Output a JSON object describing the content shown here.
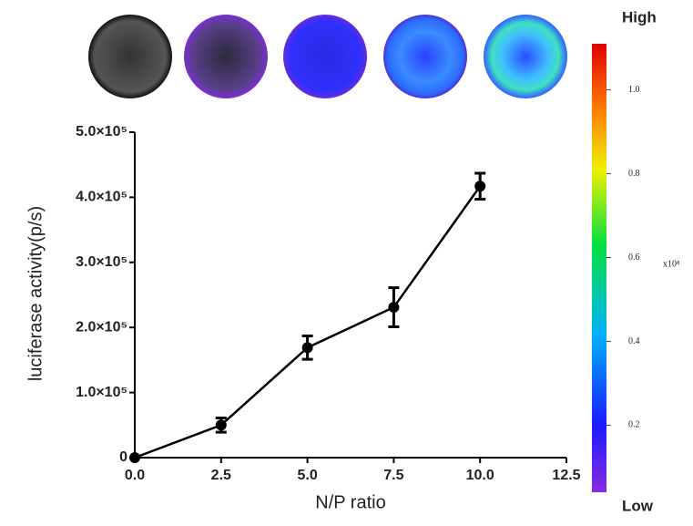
{
  "chart_data": {
    "type": "line",
    "x_label": "N/P ratio",
    "y_label": "luciferase activity(p/s)",
    "x": [
      0,
      2.5,
      5,
      7.5,
      10
    ],
    "series": [
      {
        "color": "#000000",
        "values": [
          0,
          50000,
          169000,
          231000,
          417000
        ],
        "errors": [
          0,
          11000,
          18000,
          30000,
          20000
        ]
      }
    ],
    "xlim": [
      0,
      12.5
    ],
    "xticks": [
      {
        "value": 0,
        "label": "0.0"
      },
      2.5,
      {
        "value": 5,
        "label": "5.0"
      },
      7.5,
      {
        "value": 10,
        "label": "10.0"
      },
      12.5
    ],
    "ylim": [
      0,
      500000
    ],
    "yticks": [
      0,
      {
        "value": 100000,
        "label": "1.0×10⁵"
      },
      {
        "value": 200000,
        "label": "2.0×10⁵"
      },
      {
        "value": 300000,
        "label": "3.0×10⁵"
      },
      {
        "value": 400000,
        "label": "4.0×10⁵"
      },
      {
        "value": 500000,
        "label": "5.0×10⁵"
      }
    ],
    "grid": false,
    "colorbar": {
      "lim": [
        0.04,
        1.11
      ],
      "ticks": [
        0.2,
        0.4,
        0.6,
        0.8,
        {
          "value": 1.0,
          "label": "1.0"
        }
      ],
      "unit_label": "x10⁸",
      "high_label": "High",
      "low_label": "Low"
    }
  }
}
